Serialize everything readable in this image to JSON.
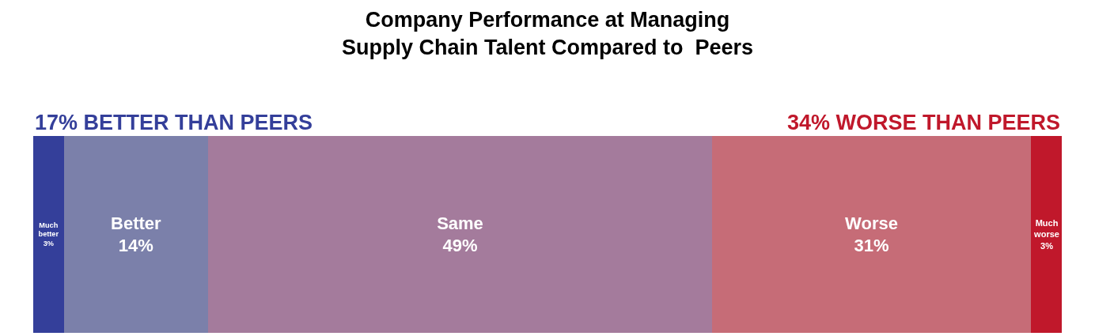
{
  "chart_data": {
    "type": "bar",
    "orientation": "horizontal",
    "stacked": true,
    "title": "Company Performance at Managing\nSupply Chain Talent Compared to  Peers",
    "annotations": [
      "17% BETTER THAN PEERS",
      "34% WORSE THAN PEERS"
    ],
    "categories": [
      null
    ],
    "xlim": [
      0,
      100
    ],
    "tick_labels": false,
    "series": [
      {
        "name": "Much better",
        "color": "#343f9a",
        "values": [
          3
        ],
        "value_labels": [
          "3%"
        ]
      },
      {
        "name": "Better",
        "color": "#7b80aa",
        "values": [
          14
        ],
        "value_labels": [
          "14%"
        ]
      },
      {
        "name": "Same",
        "color": "#a47b9c",
        "values": [
          49
        ],
        "value_labels": [
          "49%"
        ]
      },
      {
        "name": "Worse",
        "color": "#c66c77",
        "values": [
          31
        ],
        "value_labels": [
          "31%"
        ]
      },
      {
        "name": "Much worse",
        "color": "#c0182b",
        "values": [
          3
        ],
        "value_labels": [
          "3%"
        ]
      }
    ]
  }
}
